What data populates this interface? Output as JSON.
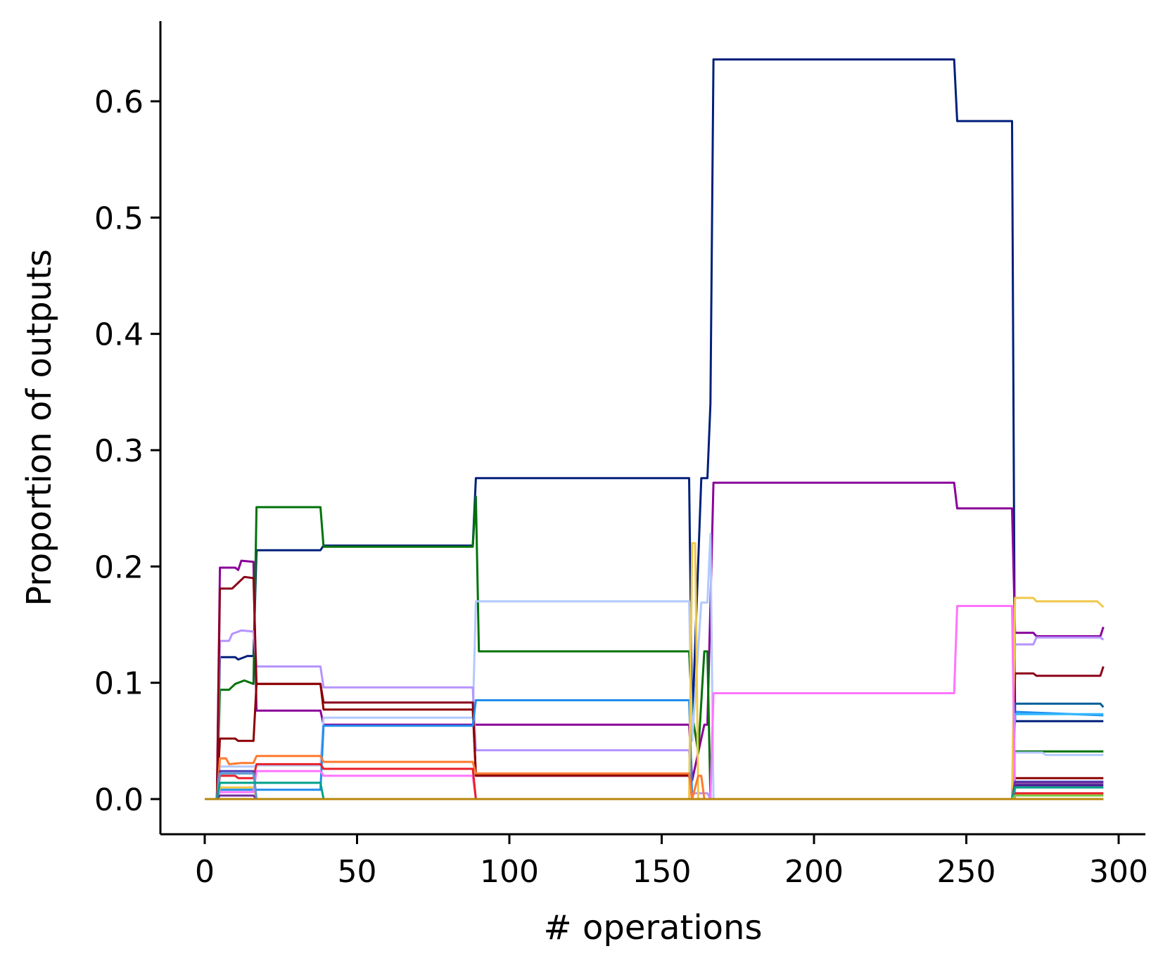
{
  "chart_data": {
    "type": "line",
    "title": "",
    "xlabel": "# operations",
    "ylabel": "Proportion of outputs",
    "xlim": [
      -15,
      310
    ],
    "ylim": [
      -0.032,
      0.67
    ],
    "xticks": [
      0,
      50,
      100,
      150,
      200,
      250,
      300
    ],
    "xtick_labels": [
      "0",
      "50",
      "100",
      "150",
      "200",
      "250",
      "300"
    ],
    "yticks": [
      0.0,
      0.1,
      0.2,
      0.3,
      0.4,
      0.5,
      0.6
    ],
    "ytick_labels": [
      "0.0",
      "0.1",
      "0.2",
      "0.3",
      "0.4",
      "0.5",
      "0.6"
    ],
    "grid": false,
    "legend": "none",
    "series": [
      {
        "color": "#001f7a",
        "points": [
          [
            0,
            0
          ],
          [
            4,
            0
          ],
          [
            5,
            0.122
          ],
          [
            10,
            0.122
          ],
          [
            11,
            0.12
          ],
          [
            14,
            0.123
          ],
          [
            16,
            0.123
          ],
          [
            17,
            0.214
          ],
          [
            38,
            0.214
          ],
          [
            39,
            0.218
          ],
          [
            88,
            0.218
          ],
          [
            89,
            0.276
          ],
          [
            159,
            0.276
          ],
          [
            160,
            0.062
          ],
          [
            163,
            0.276
          ],
          [
            165,
            0.276
          ],
          [
            166,
            0.34
          ],
          [
            167,
            0.636
          ],
          [
            246,
            0.636
          ],
          [
            247,
            0.583
          ],
          [
            265,
            0.583
          ],
          [
            266,
            0.067
          ],
          [
            295,
            0.067
          ]
        ]
      },
      {
        "color": "#8a0099",
        "points": [
          [
            0,
            0
          ],
          [
            4,
            0
          ],
          [
            5,
            0.199
          ],
          [
            10,
            0.199
          ],
          [
            11,
            0.197
          ],
          [
            12,
            0.205
          ],
          [
            16,
            0.204
          ],
          [
            17,
            0.076
          ],
          [
            38,
            0.076
          ],
          [
            39,
            0.064
          ],
          [
            88,
            0.064
          ],
          [
            89,
            0.064
          ],
          [
            159,
            0.064
          ],
          [
            160,
            0.016
          ],
          [
            164,
            0.064
          ],
          [
            165,
            0.064
          ],
          [
            167,
            0.272
          ],
          [
            246,
            0.272
          ],
          [
            247,
            0.25
          ],
          [
            265,
            0.25
          ],
          [
            266,
            0.143
          ],
          [
            272,
            0.143
          ],
          [
            273,
            0.14
          ],
          [
            294,
            0.14
          ],
          [
            295,
            0.148
          ]
        ]
      },
      {
        "color": "#00720a",
        "points": [
          [
            0,
            0
          ],
          [
            4,
            0
          ],
          [
            5,
            0.094
          ],
          [
            8,
            0.094
          ],
          [
            10,
            0.099
          ],
          [
            13,
            0.102
          ],
          [
            16,
            0.099
          ],
          [
            17,
            0.251
          ],
          [
            38,
            0.251
          ],
          [
            39,
            0.217
          ],
          [
            88,
            0.217
          ],
          [
            89,
            0.26
          ],
          [
            90,
            0.127
          ],
          [
            159,
            0.127
          ],
          [
            160,
            0.073
          ],
          [
            162,
            0.04
          ],
          [
            164,
            0.127
          ],
          [
            165,
            0.127
          ],
          [
            166,
            0.0
          ],
          [
            265,
            0
          ],
          [
            266,
            0.041
          ],
          [
            295,
            0.041
          ]
        ]
      },
      {
        "color": "#b2c9ff",
        "points": [
          [
            0,
            0
          ],
          [
            4,
            0
          ],
          [
            5,
            0.028
          ],
          [
            16,
            0.028
          ],
          [
            17,
            0.029
          ],
          [
            38,
            0.029
          ],
          [
            39,
            0.07
          ],
          [
            88,
            0.07
          ],
          [
            89,
            0.17
          ],
          [
            159,
            0.17
          ],
          [
            160,
            0.05
          ],
          [
            163,
            0.169
          ],
          [
            165,
            0.169
          ],
          [
            166,
            0.228
          ],
          [
            167,
            0
          ],
          [
            265,
            0
          ],
          [
            266,
            0.04
          ],
          [
            275,
            0.04
          ],
          [
            276,
            0.038
          ],
          [
            295,
            0.038
          ]
        ]
      },
      {
        "color": "#b593ff",
        "points": [
          [
            0,
            0
          ],
          [
            4,
            0
          ],
          [
            5,
            0.136
          ],
          [
            8,
            0.136
          ],
          [
            9,
            0.142
          ],
          [
            12,
            0.145
          ],
          [
            16,
            0.144
          ],
          [
            17,
            0.114
          ],
          [
            38,
            0.114
          ],
          [
            39,
            0.096
          ],
          [
            88,
            0.096
          ],
          [
            89,
            0.042
          ],
          [
            159,
            0.042
          ],
          [
            160,
            0.005
          ],
          [
            165,
            0.005
          ],
          [
            166,
            0
          ],
          [
            265,
            0
          ],
          [
            266,
            0.133
          ],
          [
            272,
            0.133
          ],
          [
            273,
            0.139
          ],
          [
            294,
            0.139
          ],
          [
            295,
            0.137
          ]
        ]
      },
      {
        "color": "#8b001a",
        "points": [
          [
            0,
            0
          ],
          [
            4,
            0
          ],
          [
            5,
            0.181
          ],
          [
            9,
            0.181
          ],
          [
            11,
            0.186
          ],
          [
            13,
            0.191
          ],
          [
            16,
            0.19
          ],
          [
            17,
            0.099
          ],
          [
            38,
            0.099
          ],
          [
            39,
            0.083
          ],
          [
            88,
            0.083
          ],
          [
            89,
            0.02
          ],
          [
            159,
            0.02
          ],
          [
            160,
            0.0
          ],
          [
            165,
            0
          ],
          [
            166,
            0
          ],
          [
            265,
            0
          ],
          [
            266,
            0.108
          ],
          [
            272,
            0.108
          ],
          [
            273,
            0.106
          ],
          [
            294,
            0.106
          ],
          [
            295,
            0.114
          ]
        ]
      },
      {
        "color": "#8b0000",
        "points": [
          [
            0,
            0
          ],
          [
            4,
            0
          ],
          [
            5,
            0.052
          ],
          [
            10,
            0.052
          ],
          [
            11,
            0.05
          ],
          [
            16,
            0.05
          ],
          [
            17,
            0.099
          ],
          [
            38,
            0.099
          ],
          [
            39,
            0.077
          ],
          [
            88,
            0.077
          ],
          [
            89,
            0.021
          ],
          [
            159,
            0.021
          ],
          [
            160,
            0.0
          ],
          [
            265,
            0
          ],
          [
            266,
            0.018
          ],
          [
            295,
            0.018
          ]
        ]
      },
      {
        "color": "#1f8ded",
        "points": [
          [
            0,
            0
          ],
          [
            4,
            0
          ],
          [
            5,
            0.008
          ],
          [
            38,
            0.008
          ],
          [
            39,
            0.063
          ],
          [
            88,
            0.063
          ],
          [
            89,
            0.085
          ],
          [
            159,
            0.085
          ],
          [
            160,
            0.0
          ],
          [
            165,
            0
          ],
          [
            166,
            0
          ],
          [
            265,
            0
          ],
          [
            266,
            0.075
          ],
          [
            295,
            0.072
          ]
        ]
      },
      {
        "color": "#005f99",
        "points": [
          [
            0,
            0
          ],
          [
            265,
            0
          ],
          [
            266,
            0.082
          ],
          [
            294,
            0.082
          ],
          [
            295,
            0.079
          ]
        ]
      },
      {
        "color": "#31b7ff",
        "points": [
          [
            0,
            0
          ],
          [
            265,
            0
          ],
          [
            266,
            0.073
          ],
          [
            295,
            0.073
          ]
        ]
      },
      {
        "color": "#f0c84a",
        "points": [
          [
            0,
            0
          ],
          [
            4,
            0
          ],
          [
            5,
            0.01
          ],
          [
            16,
            0.01
          ],
          [
            17,
            0.0
          ],
          [
            159,
            0
          ],
          [
            160,
            0.22
          ],
          [
            161,
            0.22
          ],
          [
            162,
            0
          ],
          [
            265,
            0
          ],
          [
            266,
            0.173
          ],
          [
            272,
            0.173
          ],
          [
            273,
            0.17
          ],
          [
            293,
            0.17
          ],
          [
            295,
            0.165
          ]
        ]
      },
      {
        "color": "#ff7a2e",
        "points": [
          [
            0,
            0
          ],
          [
            4,
            0
          ],
          [
            5,
            0.035
          ],
          [
            7,
            0.035
          ],
          [
            8,
            0.03
          ],
          [
            12,
            0.031
          ],
          [
            16,
            0.031
          ],
          [
            17,
            0.037
          ],
          [
            38,
            0.037
          ],
          [
            39,
            0.032
          ],
          [
            88,
            0.032
          ],
          [
            89,
            0.022
          ],
          [
            159,
            0.022
          ],
          [
            160,
            0.0
          ],
          [
            162,
            0.02
          ],
          [
            163,
            0.02
          ],
          [
            164,
            0.0
          ],
          [
            265,
            0
          ],
          [
            266,
            0.004
          ],
          [
            295,
            0.004
          ]
        ]
      },
      {
        "color": "#ff73ff",
        "points": [
          [
            0,
            0
          ],
          [
            4,
            0
          ],
          [
            5,
            0.006
          ],
          [
            16,
            0.006
          ],
          [
            17,
            0.024
          ],
          [
            38,
            0.024
          ],
          [
            39,
            0.02
          ],
          [
            88,
            0.02
          ],
          [
            89,
            0.0
          ],
          [
            165,
            0
          ],
          [
            166,
            0
          ],
          [
            167,
            0.091
          ],
          [
            246,
            0.091
          ],
          [
            247,
            0.166
          ],
          [
            265,
            0.166
          ],
          [
            266,
            0
          ],
          [
            295,
            0
          ]
        ]
      },
      {
        "color": "#e8202a",
        "points": [
          [
            0,
            0
          ],
          [
            4,
            0
          ],
          [
            5,
            0.02
          ],
          [
            10,
            0.02
          ],
          [
            11,
            0.018
          ],
          [
            16,
            0.018
          ],
          [
            17,
            0.03
          ],
          [
            38,
            0.03
          ],
          [
            39,
            0.026
          ],
          [
            88,
            0.026
          ],
          [
            89,
            0.0
          ],
          [
            265,
            0
          ],
          [
            266,
            0.005
          ],
          [
            295,
            0.005
          ]
        ]
      },
      {
        "color": "#4b3fb8",
        "points": [
          [
            0,
            0
          ],
          [
            4,
            0
          ],
          [
            5,
            0.024
          ],
          [
            16,
            0.024
          ],
          [
            17,
            0.0
          ],
          [
            265,
            0
          ],
          [
            266,
            0.015
          ],
          [
            295,
            0.015
          ]
        ]
      },
      {
        "color": "#3a0f8a",
        "points": [
          [
            0,
            0
          ],
          [
            265,
            0
          ],
          [
            266,
            0.012
          ],
          [
            295,
            0.012
          ]
        ]
      },
      {
        "color": "#6f2f9f",
        "points": [
          [
            0,
            0
          ],
          [
            4,
            0
          ],
          [
            5,
            0.003
          ],
          [
            16,
            0.003
          ],
          [
            17,
            0.0
          ],
          [
            265,
            0
          ],
          [
            266,
            0.014
          ],
          [
            295,
            0.014
          ]
        ]
      },
      {
        "color": "#5c9bd1",
        "points": [
          [
            0,
            0
          ],
          [
            4,
            0
          ],
          [
            5,
            0.022
          ],
          [
            16,
            0.022
          ],
          [
            17,
            0.0
          ],
          [
            265,
            0
          ],
          [
            295,
            0
          ]
        ]
      },
      {
        "color": "#00a08a",
        "points": [
          [
            0,
            0
          ],
          [
            4,
            0
          ],
          [
            5,
            0.014
          ],
          [
            16,
            0.014
          ],
          [
            17,
            0.014
          ],
          [
            38,
            0.014
          ],
          [
            39,
            0.0
          ],
          [
            265,
            0
          ],
          [
            266,
            0.01
          ],
          [
            295,
            0.01
          ]
        ]
      },
      {
        "color": "#7ac943",
        "points": [
          [
            0,
            0
          ],
          [
            265,
            0
          ],
          [
            266,
            0.003
          ],
          [
            295,
            0.003
          ]
        ]
      },
      {
        "color": "#b8860b",
        "points": [
          [
            0,
            0
          ],
          [
            295,
            0
          ]
        ]
      }
    ]
  }
}
